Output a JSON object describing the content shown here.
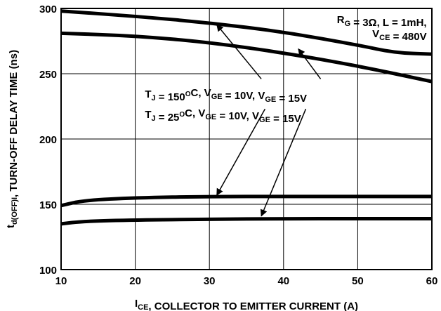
{
  "chart_data": {
    "type": "line",
    "xlabel": {
      "main": "I",
      "sub": "CE",
      "rest": ", COLLECTOR TO EMITTER CURRENT (A)"
    },
    "ylabel": {
      "main": "t",
      "sub": "d(OFF)I",
      "rest": ", TURN-OFF DELAY TIME  (ns)"
    },
    "xlim": [
      10,
      60
    ],
    "ylim": [
      100,
      300
    ],
    "x_ticks": [
      10,
      20,
      30,
      40,
      50,
      60
    ],
    "y_ticks": [
      100,
      150,
      200,
      250,
      300
    ],
    "grid": true,
    "series": [
      {
        "x": [
          10,
          20,
          30,
          40,
          50,
          55,
          60
        ],
        "values": [
          298,
          294,
          289,
          282,
          272,
          266,
          265
        ]
      },
      {
        "x": [
          10,
          20,
          30,
          40,
          50,
          60
        ],
        "values": [
          281,
          279,
          274,
          266,
          256,
          244
        ]
      },
      {
        "x": [
          10,
          13,
          20,
          30,
          40,
          50,
          60
        ],
        "values": [
          149,
          153,
          155,
          156,
          156,
          156,
          156
        ]
      },
      {
        "x": [
          10,
          13,
          20,
          30,
          40,
          50,
          60
        ],
        "values": [
          135,
          137,
          138,
          138.5,
          139,
          139,
          139
        ]
      }
    ],
    "annotations": {
      "conditions": [
        [
          {
            "t": "R"
          },
          {
            "t": "G",
            "s": "sub"
          },
          {
            "t": " = 3Ω, L = 1mH,"
          }
        ],
        [
          {
            "t": "V"
          },
          {
            "t": "CE",
            "s": "sub"
          },
          {
            "t": " = 480V"
          }
        ]
      ],
      "label_150": [
        {
          "t": "T"
        },
        {
          "t": "J",
          "s": "sub"
        },
        {
          "t": " = 150"
        },
        {
          "t": "O",
          "s": "sup"
        },
        {
          "t": "C, V"
        },
        {
          "t": "GE",
          "s": "sub"
        },
        {
          "t": " = 10V, V"
        },
        {
          "t": "GE",
          "s": "sub"
        },
        {
          "t": " = 15V"
        }
      ],
      "label_25": [
        {
          "t": "T"
        },
        {
          "t": "J",
          "s": "sub"
        },
        {
          "t": " = 25"
        },
        {
          "t": "O",
          "s": "sup"
        },
        {
          "t": "C, V"
        },
        {
          "t": "GE",
          "s": "sub"
        },
        {
          "t": " = 10V, V"
        },
        {
          "t": "GE",
          "s": "sub"
        },
        {
          "t": " = 15V"
        }
      ]
    }
  }
}
